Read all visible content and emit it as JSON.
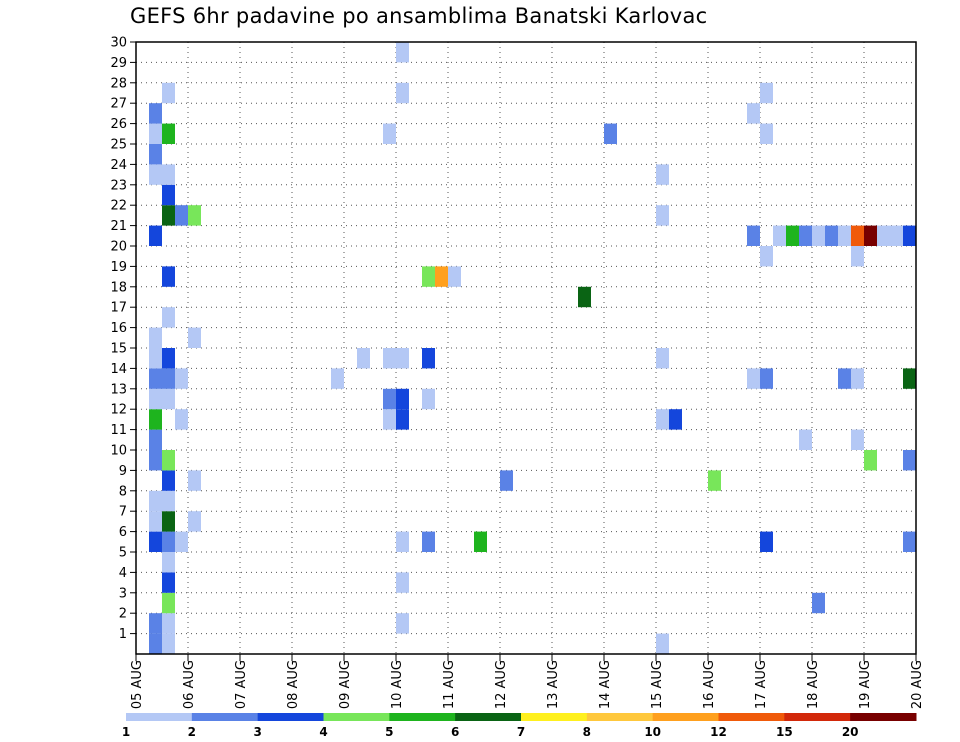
{
  "chart_data": {
    "type": "heatmap",
    "title": "GEFS 6hr padavine po ansamblima Banatski Karlovac",
    "x_tick_labels": [
      "05 AUG",
      "06 AUG",
      "07 AUG",
      "08 AUG",
      "09 AUG",
      "10 AUG",
      "11 AUG",
      "12 AUG",
      "13 AUG",
      "14 AUG",
      "15 AUG",
      "16 AUG",
      "17 AUG",
      "18 AUG",
      "19 AUG",
      "20 AUG"
    ],
    "y_tick_labels": [
      "1",
      "2",
      "3",
      "4",
      "5",
      "6",
      "7",
      "8",
      "9",
      "10",
      "11",
      "12",
      "13",
      "14",
      "15",
      "16",
      "17",
      "18",
      "19",
      "20",
      "21",
      "22",
      "23",
      "24",
      "25",
      "26",
      "27",
      "28",
      "29",
      "30"
    ],
    "x_range_days": [
      0,
      15
    ],
    "y_range_members": [
      0,
      30
    ],
    "time_step_hours": 6,
    "grid": "dotted",
    "colorbar": {
      "position": "bottom",
      "labels": [
        "1",
        "2",
        "3",
        "4",
        "5",
        "6",
        "7",
        "8",
        "10",
        "12",
        "15",
        "20"
      ],
      "colors": [
        "#b4c8f5",
        "#5a82e6",
        "#1446dc",
        "#78e65a",
        "#1eb41e",
        "#0a6414",
        "#fff01e",
        "#ffc83c",
        "#ffa01e",
        "#f05a0a",
        "#d2280a",
        "#780000"
      ]
    },
    "cells": [
      {
        "m": 1,
        "t": 1,
        "c": 1
      },
      {
        "m": 1,
        "t": 2,
        "c": 0
      },
      {
        "m": 1,
        "t": 40,
        "c": 0
      },
      {
        "m": 2,
        "t": 1,
        "c": 1
      },
      {
        "m": 2,
        "t": 2,
        "c": 0
      },
      {
        "m": 2,
        "t": 20,
        "c": 0
      },
      {
        "m": 3,
        "t": 2,
        "c": 3
      },
      {
        "m": 3,
        "t": 52,
        "c": 1
      },
      {
        "m": 4,
        "t": 2,
        "c": 2
      },
      {
        "m": 4,
        "t": 20,
        "c": 0
      },
      {
        "m": 5,
        "t": 2,
        "c": 0
      },
      {
        "m": 6,
        "t": 1,
        "c": 2
      },
      {
        "m": 6,
        "t": 2,
        "c": 1
      },
      {
        "m": 6,
        "t": 3,
        "c": 0
      },
      {
        "m": 6,
        "t": 20,
        "c": 0
      },
      {
        "m": 6,
        "t": 22,
        "c": 1
      },
      {
        "m": 6,
        "t": 26,
        "c": 4
      },
      {
        "m": 6,
        "t": 48,
        "c": 2
      },
      {
        "m": 6,
        "t": 59,
        "c": 1
      },
      {
        "m": 7,
        "t": 1,
        "c": 0
      },
      {
        "m": 7,
        "t": 2,
        "c": 5
      },
      {
        "m": 7,
        "t": 4,
        "c": 0
      },
      {
        "m": 8,
        "t": 1,
        "c": 0
      },
      {
        "m": 8,
        "t": 2,
        "c": 0
      },
      {
        "m": 9,
        "t": 2,
        "c": 2
      },
      {
        "m": 9,
        "t": 4,
        "c": 0
      },
      {
        "m": 9,
        "t": 28,
        "c": 1
      },
      {
        "m": 9,
        "t": 44,
        "c": 3
      },
      {
        "m": 10,
        "t": 1,
        "c": 1
      },
      {
        "m": 10,
        "t": 2,
        "c": 3
      },
      {
        "m": 10,
        "t": 56,
        "c": 3
      },
      {
        "m": 10,
        "t": 59,
        "c": 1
      },
      {
        "m": 11,
        "t": 1,
        "c": 1
      },
      {
        "m": 11,
        "t": 51,
        "c": 0
      },
      {
        "m": 11,
        "t": 55,
        "c": 0
      },
      {
        "m": 12,
        "t": 1,
        "c": 4
      },
      {
        "m": 12,
        "t": 3,
        "c": 0
      },
      {
        "m": 12,
        "t": 19,
        "c": 0
      },
      {
        "m": 12,
        "t": 20,
        "c": 2
      },
      {
        "m": 12,
        "t": 40,
        "c": 0
      },
      {
        "m": 12,
        "t": 41,
        "c": 2
      },
      {
        "m": 13,
        "t": 1,
        "c": 0
      },
      {
        "m": 13,
        "t": 2,
        "c": 0
      },
      {
        "m": 13,
        "t": 19,
        "c": 1
      },
      {
        "m": 13,
        "t": 20,
        "c": 2
      },
      {
        "m": 13,
        "t": 22,
        "c": 0
      },
      {
        "m": 14,
        "t": 1,
        "c": 1
      },
      {
        "m": 14,
        "t": 2,
        "c": 1
      },
      {
        "m": 14,
        "t": 3,
        "c": 0
      },
      {
        "m": 14,
        "t": 15,
        "c": 0
      },
      {
        "m": 14,
        "t": 47,
        "c": 0
      },
      {
        "m": 14,
        "t": 48,
        "c": 1
      },
      {
        "m": 14,
        "t": 54,
        "c": 1
      },
      {
        "m": 14,
        "t": 55,
        "c": 0
      },
      {
        "m": 14,
        "t": 59,
        "c": 5
      },
      {
        "m": 15,
        "t": 1,
        "c": 0
      },
      {
        "m": 15,
        "t": 2,
        "c": 2
      },
      {
        "m": 15,
        "t": 17,
        "c": 0
      },
      {
        "m": 15,
        "t": 19,
        "c": 0
      },
      {
        "m": 15,
        "t": 20,
        "c": 0
      },
      {
        "m": 15,
        "t": 22,
        "c": 2
      },
      {
        "m": 15,
        "t": 40,
        "c": 0
      },
      {
        "m": 16,
        "t": 1,
        "c": 0
      },
      {
        "m": 16,
        "t": 4,
        "c": 0
      },
      {
        "m": 17,
        "t": 2,
        "c": 0
      },
      {
        "m": 18,
        "t": 34,
        "c": 5
      },
      {
        "m": 19,
        "t": 2,
        "c": 2
      },
      {
        "m": 19,
        "t": 22,
        "c": 3
      },
      {
        "m": 19,
        "t": 23,
        "c": 8
      },
      {
        "m": 19,
        "t": 24,
        "c": 0
      },
      {
        "m": 20,
        "t": 48,
        "c": 0
      },
      {
        "m": 20,
        "t": 55,
        "c": 0
      },
      {
        "m": 21,
        "t": 1,
        "c": 2
      },
      {
        "m": 21,
        "t": 47,
        "c": 1
      },
      {
        "m": 21,
        "t": 49,
        "c": 0
      },
      {
        "m": 21,
        "t": 50,
        "c": 4
      },
      {
        "m": 21,
        "t": 51,
        "c": 1
      },
      {
        "m": 21,
        "t": 52,
        "c": 0
      },
      {
        "m": 21,
        "t": 53,
        "c": 1
      },
      {
        "m": 21,
        "t": 54,
        "c": 0
      },
      {
        "m": 21,
        "t": 55,
        "c": 9
      },
      {
        "m": 21,
        "t": 56,
        "c": 11
      },
      {
        "m": 21,
        "t": 57,
        "c": 0
      },
      {
        "m": 21,
        "t": 58,
        "c": 0
      },
      {
        "m": 21,
        "t": 59,
        "c": 2
      },
      {
        "m": 22,
        "t": 2,
        "c": 5
      },
      {
        "m": 22,
        "t": 3,
        "c": 1
      },
      {
        "m": 22,
        "t": 4,
        "c": 3
      },
      {
        "m": 22,
        "t": 40,
        "c": 0
      },
      {
        "m": 23,
        "t": 2,
        "c": 2
      },
      {
        "m": 24,
        "t": 1,
        "c": 0
      },
      {
        "m": 24,
        "t": 2,
        "c": 0
      },
      {
        "m": 24,
        "t": 40,
        "c": 0
      },
      {
        "m": 25,
        "t": 1,
        "c": 1
      },
      {
        "m": 26,
        "t": 1,
        "c": 0
      },
      {
        "m": 26,
        "t": 2,
        "c": 4
      },
      {
        "m": 26,
        "t": 19,
        "c": 0
      },
      {
        "m": 26,
        "t": 36,
        "c": 1
      },
      {
        "m": 26,
        "t": 48,
        "c": 0
      },
      {
        "m": 27,
        "t": 1,
        "c": 1
      },
      {
        "m": 27,
        "t": 47,
        "c": 0
      },
      {
        "m": 28,
        "t": 2,
        "c": 0
      },
      {
        "m": 28,
        "t": 20,
        "c": 0
      },
      {
        "m": 28,
        "t": 48,
        "c": 0
      },
      {
        "m": 30,
        "t": 20,
        "c": 0
      }
    ]
  }
}
